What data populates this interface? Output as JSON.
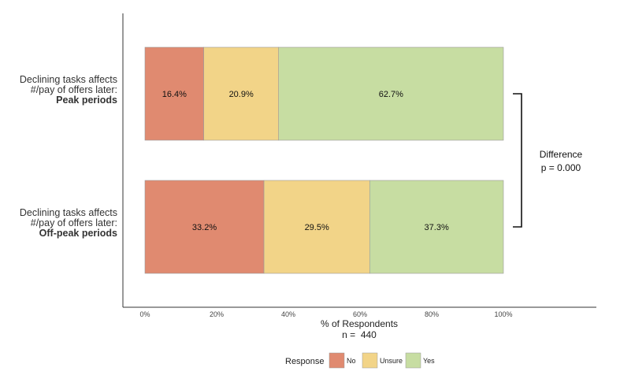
{
  "chart_data": {
    "type": "bar",
    "orientation": "horizontal",
    "stacked": true,
    "categories": [
      {
        "lines": [
          "Declining tasks affects",
          "#/pay of offers later:"
        ],
        "emphasis": "Peak periods"
      },
      {
        "lines": [
          "Declining tasks affects",
          "#/pay of offers later:"
        ],
        "emphasis": "Off-peak periods"
      }
    ],
    "series": [
      {
        "name": "No",
        "color": "#E08A70",
        "values": [
          16.4,
          33.2
        ],
        "labels": [
          "16.4%",
          "33.2%"
        ]
      },
      {
        "name": "Unsure",
        "color": "#F2D488",
        "values": [
          20.9,
          29.5
        ],
        "labels": [
          "20.9%",
          "29.5%"
        ]
      },
      {
        "name": "Yes",
        "color": "#C7DDA2",
        "values": [
          62.7,
          37.3
        ],
        "labels": [
          "62.7%",
          "37.3%"
        ]
      }
    ],
    "xlim": [
      0,
      100
    ],
    "xticks": [
      {
        "value": 0,
        "label": "0%"
      },
      {
        "value": 20,
        "label": "20%"
      },
      {
        "value": 40,
        "label": "40%"
      },
      {
        "value": 60,
        "label": "60%"
      },
      {
        "value": 80,
        "label": "80%"
      },
      {
        "value": 100,
        "label": "100%"
      }
    ],
    "xlabel": "% of Respondents",
    "n_label": "n =  440",
    "annotation": {
      "title": "Difference",
      "value": "p = 0.000"
    },
    "legend": {
      "title": "Response",
      "placement": "bottom"
    },
    "grid": false
  }
}
